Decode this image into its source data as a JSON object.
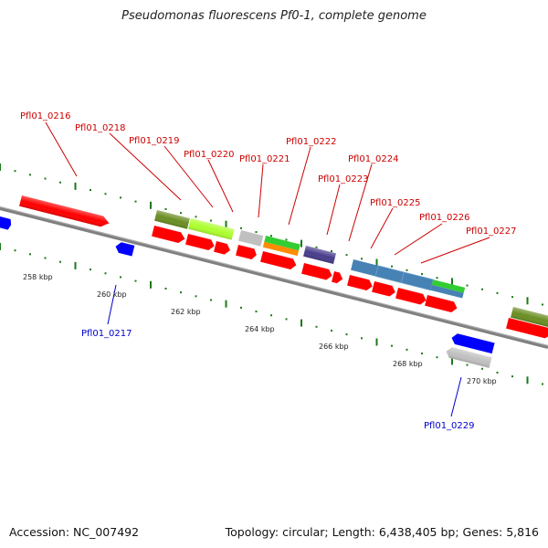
{
  "map": {
    "title": "Pseudomonas fluorescens Pf0-1, complete genome",
    "accession": "Accession: NC_007492",
    "summary": "Topology: circular; Length: 6,438,405 bp; Genes: 5,816"
  },
  "colors": {
    "backbone": "#808080",
    "tick": "#1a7a1a",
    "forward_label": "#cc0000",
    "reverse_label": "#0000cc",
    "cds": "#ff0000",
    "cds_rev": "#0000ff",
    "olive": "#6b8e23",
    "lime": "#adff2f",
    "gray": "#c0c0c0",
    "green": "#32cd32",
    "orange": "#ff8c00",
    "purple": "#483d8b",
    "steel": "#4682b4"
  },
  "ticks": [
    {
      "label": "258 kbp",
      "pos": 258
    },
    {
      "label": "260 kbp",
      "pos": 260
    },
    {
      "label": "262 kbp",
      "pos": 262
    },
    {
      "label": "264 kbp",
      "pos": 264
    },
    {
      "label": "266 kbp",
      "pos": 266
    },
    {
      "label": "268 kbp",
      "pos": 268
    },
    {
      "label": "270 kbp",
      "pos": 270
    }
  ],
  "labels_forward": [
    "Pfl01_0216",
    "Pfl01_0218",
    "Pfl01_0219",
    "Pfl01_0220",
    "Pfl01_0221",
    "Pfl01_0222",
    "Pfl01_0223",
    "Pfl01_0224",
    "Pfl01_0225",
    "Pfl01_0226",
    "Pfl01_0227"
  ],
  "labels_reverse": [
    "Pfl01_0217",
    "Pfl01_0229"
  ]
}
